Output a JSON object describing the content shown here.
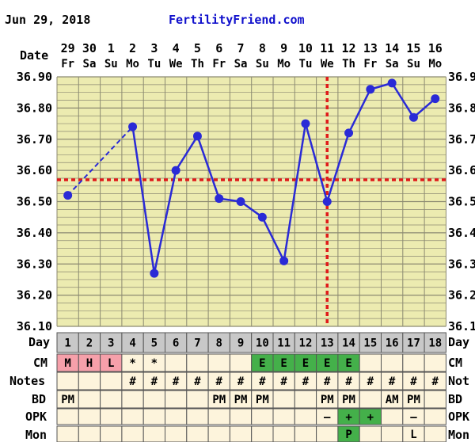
{
  "header": {
    "date": "Jun 29, 2018",
    "site": "FertilityFriend.com"
  },
  "labels": {
    "date": "Date",
    "day": "Day",
    "cm": "CM",
    "notes": "Notes",
    "bd": "BD",
    "opk": "OPK",
    "mon": "Mon",
    "right_day": "Day",
    "right_cm": "CM",
    "right_notes": "Not",
    "right_bd": "BD",
    "right_opk": "OPK",
    "right_mon": "Mon"
  },
  "colors": {
    "grid_bg": "#ecebb0",
    "grid_line": "#8c8a72",
    "line": "#2a2ad6",
    "coverline": "#e01a1a",
    "day_row": "#c8c8c8",
    "row_bg": "#fdf4dc",
    "cm_menses": "#f6a0aa",
    "cm_egg": "#44b04a",
    "opk_positive": "#44b04a",
    "site_text": "#1010cc"
  },
  "chart_data": {
    "type": "line",
    "dates": [
      "29",
      "30",
      "1",
      "2",
      "3",
      "4",
      "5",
      "6",
      "7",
      "8",
      "9",
      "10",
      "11",
      "12",
      "13",
      "14",
      "15",
      "16"
    ],
    "weekdays": [
      "Fr",
      "Sa",
      "Su",
      "Mo",
      "Tu",
      "We",
      "Th",
      "Fr",
      "Sa",
      "Su",
      "Mo",
      "Tu",
      "We",
      "Th",
      "Fr",
      "Sa",
      "Su",
      "Mo"
    ],
    "cycle_days": [
      "1",
      "2",
      "3",
      "4",
      "5",
      "6",
      "7",
      "8",
      "9",
      "10",
      "11",
      "12",
      "13",
      "14",
      "15",
      "16",
      "17",
      "18"
    ],
    "temperatures": [
      36.52,
      null,
      null,
      36.74,
      36.27,
      36.6,
      36.71,
      36.51,
      36.5,
      36.45,
      36.31,
      36.75,
      36.5,
      36.72,
      36.86,
      36.88,
      36.77,
      36.83
    ],
    "yticks": [
      "36.10",
      "36.20",
      "36.30",
      "36.40",
      "36.50",
      "36.60",
      "36.70",
      "36.80",
      "36.90"
    ],
    "right_yticks": [
      "36.1",
      "36.2",
      "36.3",
      "36.4",
      "36.5",
      "36.6",
      "36.7",
      "36.8",
      "36.9"
    ],
    "ylim": [
      36.1,
      36.9
    ],
    "coverline": 36.57,
    "ovulation_day_index": 12,
    "cm": [
      "M",
      "H",
      "L",
      "*",
      "*",
      "",
      "",
      "",
      "",
      "E",
      "E",
      "E",
      "E",
      "E",
      "",
      "",
      "",
      ""
    ],
    "cm_types": [
      "menses",
      "menses",
      "menses",
      "",
      "",
      "",
      "",
      "",
      "",
      "egg",
      "egg",
      "egg",
      "egg",
      "egg",
      "",
      "",
      "",
      ""
    ],
    "notes": [
      "",
      "",
      "",
      "#",
      "#",
      "#",
      "#",
      "#",
      "#",
      "#",
      "#",
      "#",
      "#",
      "#",
      "#",
      "#",
      "#",
      "#"
    ],
    "bd": [
      "PM",
      "",
      "",
      "",
      "",
      "",
      "",
      "PM",
      "PM",
      "PM",
      "",
      "",
      "PM",
      "PM",
      "",
      "AM",
      "PM",
      ""
    ],
    "opk": [
      "",
      "",
      "",
      "",
      "",
      "",
      "",
      "",
      "",
      "",
      "",
      "",
      "–",
      "+",
      "+",
      "",
      "–",
      ""
    ],
    "opk_types": [
      "",
      "",
      "",
      "",
      "",
      "",
      "",
      "",
      "",
      "",
      "",
      "",
      "",
      "positive",
      "positive",
      "",
      "",
      ""
    ],
    "mon": [
      "",
      "",
      "",
      "",
      "",
      "",
      "",
      "",
      "",
      "",
      "",
      "",
      "",
      "P",
      "",
      "",
      "L",
      ""
    ],
    "mon_types": [
      "",
      "",
      "",
      "",
      "",
      "",
      "",
      "",
      "",
      "",
      "",
      "",
      "",
      "positive",
      "",
      "",
      "",
      ""
    ]
  }
}
